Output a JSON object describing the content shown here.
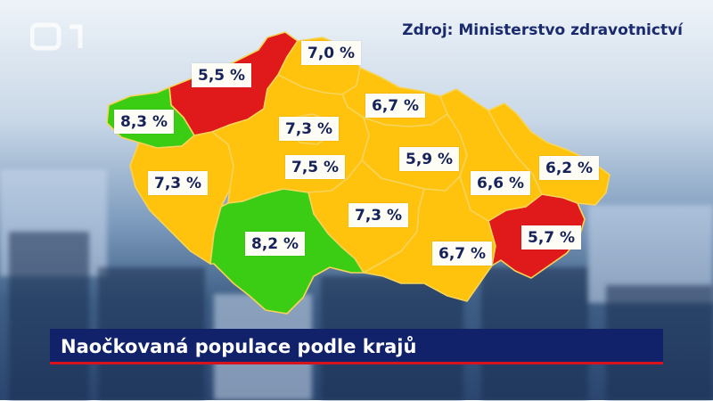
{
  "source": "Zdroj: Ministerstvo zdravotnictví",
  "title": "Naočkovaná populace podle krajů",
  "colors": {
    "low": "#e01a1a",
    "mid": "#ffc20d",
    "high": "#3bcc14",
    "title_bg": "#11226a",
    "accent": "#d7141e"
  },
  "regions": [
    {
      "id": "ustecky",
      "value": "5,5 %",
      "level": "low"
    },
    {
      "id": "liberecky",
      "value": "7,0 %",
      "level": "mid"
    },
    {
      "id": "karlovarsky",
      "value": "8,3 %",
      "level": "high"
    },
    {
      "id": "kralovehradecky",
      "value": "6,7 %",
      "level": "mid"
    },
    {
      "id": "praha",
      "value": "7,3 %",
      "level": "mid"
    },
    {
      "id": "plzensky",
      "value": "7,3 %",
      "level": "mid"
    },
    {
      "id": "stredocesky",
      "value": "7,5 %",
      "level": "mid"
    },
    {
      "id": "pardubicky",
      "value": "5,9 %",
      "level": "mid"
    },
    {
      "id": "olomoucky",
      "value": "6,6 %",
      "level": "mid"
    },
    {
      "id": "moravskoslezsky",
      "value": "6,2 %",
      "level": "mid"
    },
    {
      "id": "vysocina",
      "value": "7,3 %",
      "level": "mid"
    },
    {
      "id": "jihocesky",
      "value": "8,2 %",
      "level": "high"
    },
    {
      "id": "jihomoravsky",
      "value": "6,7 %",
      "level": "mid"
    },
    {
      "id": "zlinsky",
      "value": "5,7 %",
      "level": "low"
    }
  ]
}
